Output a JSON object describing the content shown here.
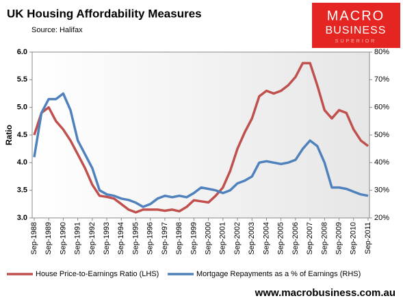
{
  "chart_data": {
    "type": "line",
    "title": "UK Housing  Affordability Measures",
    "subtitle": "Source:  Halifax",
    "y_label": "Ratio",
    "footer": "www.macrobusiness.com.au",
    "logo": {
      "line1": "MACRO",
      "line2": "BUSINESS",
      "tagline": "superior"
    },
    "categories": [
      "Sep-1988",
      null,
      "Sep-1989",
      null,
      "Sep-1990",
      null,
      "Sep-1991",
      null,
      "Sep-1992",
      null,
      "Sep-1993",
      null,
      "Sep-1994",
      null,
      "Sep-1995",
      null,
      "Sep-1996",
      null,
      "Sep-1997",
      null,
      "Sep-1998",
      null,
      "Sep-1999",
      null,
      "Sep-2000",
      null,
      "Sep-2001",
      null,
      "Sep-2002",
      null,
      "Sep-2003",
      null,
      "Sep-2004",
      null,
      "Sep-2005",
      null,
      "Sep-2006",
      null,
      "Sep-2007",
      null,
      "Sep-2008",
      null,
      "Sep-2009",
      null,
      "Sep-2010",
      null,
      "Sep-2011"
    ],
    "series": [
      {
        "name": "House Price-to-Earnings Ratio (LHS)",
        "color": "#c0504d",
        "axis": "y",
        "values": [
          4.5,
          4.9,
          5.0,
          4.75,
          4.6,
          4.4,
          4.15,
          3.9,
          3.6,
          3.4,
          3.38,
          3.35,
          3.25,
          3.15,
          3.1,
          3.15,
          3.15,
          3.15,
          3.13,
          3.15,
          3.12,
          3.2,
          3.32,
          3.3,
          3.28,
          3.4,
          3.55,
          3.85,
          4.25,
          4.55,
          4.8,
          5.2,
          5.3,
          5.25,
          5.3,
          5.4,
          5.55,
          5.8,
          5.8,
          5.4,
          4.95,
          4.8,
          4.95,
          4.9,
          4.6,
          4.4,
          4.3
        ]
      },
      {
        "name": "Mortgage Repayments as a % of Earnings (RHS)",
        "color": "#4f81bd",
        "axis": "y2",
        "values": [
          42,
          58,
          63,
          63,
          65,
          59,
          48,
          43,
          38,
          30,
          28.5,
          28,
          27,
          26.5,
          25.5,
          24,
          25,
          27,
          28,
          27.5,
          28,
          27.5,
          29,
          31,
          30.5,
          30,
          29,
          30,
          32.5,
          33.5,
          35,
          40,
          40.5,
          40,
          39.5,
          40,
          41,
          45,
          48,
          46,
          40,
          31,
          31,
          30.5,
          29.5,
          28.5,
          28
        ]
      }
    ],
    "ylim": [
      3,
      6
    ],
    "yticks": [
      {
        "value": 3,
        "label": "3.0"
      },
      {
        "value": 3.5,
        "label": "3.5"
      },
      {
        "value": 4,
        "label": "4.0"
      },
      {
        "value": 4.5,
        "label": "4.5"
      },
      {
        "value": 5,
        "label": "5.0"
      },
      {
        "value": 5.5,
        "label": "5.5"
      },
      {
        "value": 6,
        "label": "6.0"
      }
    ],
    "y2lim": [
      20,
      80
    ],
    "y2ticks": [
      {
        "value": 20,
        "label": "20%"
      },
      {
        "value": 30,
        "label": "30%"
      },
      {
        "value": 40,
        "label": "40%"
      },
      {
        "value": 50,
        "label": "50%"
      },
      {
        "value": 60,
        "label": "60%"
      },
      {
        "value": 70,
        "label": "70%"
      },
      {
        "value": 80,
        "label": "80%"
      }
    ],
    "grid": false
  }
}
